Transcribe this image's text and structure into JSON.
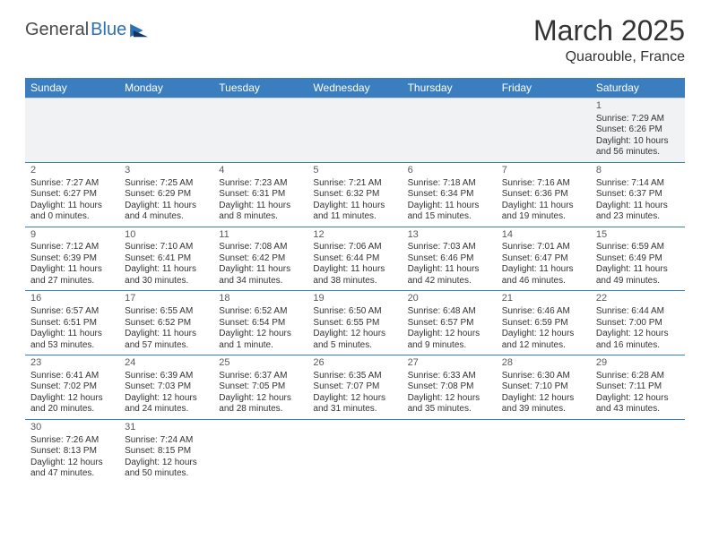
{
  "logo": {
    "text1": "General",
    "text2": "Blue"
  },
  "title": "March 2025",
  "location": "Quarouble, France",
  "colors": {
    "header_bg": "#3a7ebf",
    "header_fg": "#ffffff",
    "row_border": "#3a7ebf",
    "blank_bg": "#f0f2f4",
    "text": "#333333"
  },
  "day_headers": [
    "Sunday",
    "Monday",
    "Tuesday",
    "Wednesday",
    "Thursday",
    "Friday",
    "Saturday"
  ],
  "weeks": [
    [
      null,
      null,
      null,
      null,
      null,
      null,
      {
        "n": "1",
        "sr": "Sunrise: 7:29 AM",
        "ss": "Sunset: 6:26 PM",
        "d1": "Daylight: 10 hours",
        "d2": "and 56 minutes."
      }
    ],
    [
      {
        "n": "2",
        "sr": "Sunrise: 7:27 AM",
        "ss": "Sunset: 6:27 PM",
        "d1": "Daylight: 11 hours",
        "d2": "and 0 minutes."
      },
      {
        "n": "3",
        "sr": "Sunrise: 7:25 AM",
        "ss": "Sunset: 6:29 PM",
        "d1": "Daylight: 11 hours",
        "d2": "and 4 minutes."
      },
      {
        "n": "4",
        "sr": "Sunrise: 7:23 AM",
        "ss": "Sunset: 6:31 PM",
        "d1": "Daylight: 11 hours",
        "d2": "and 8 minutes."
      },
      {
        "n": "5",
        "sr": "Sunrise: 7:21 AM",
        "ss": "Sunset: 6:32 PM",
        "d1": "Daylight: 11 hours",
        "d2": "and 11 minutes."
      },
      {
        "n": "6",
        "sr": "Sunrise: 7:18 AM",
        "ss": "Sunset: 6:34 PM",
        "d1": "Daylight: 11 hours",
        "d2": "and 15 minutes."
      },
      {
        "n": "7",
        "sr": "Sunrise: 7:16 AM",
        "ss": "Sunset: 6:36 PM",
        "d1": "Daylight: 11 hours",
        "d2": "and 19 minutes."
      },
      {
        "n": "8",
        "sr": "Sunrise: 7:14 AM",
        "ss": "Sunset: 6:37 PM",
        "d1": "Daylight: 11 hours",
        "d2": "and 23 minutes."
      }
    ],
    [
      {
        "n": "9",
        "sr": "Sunrise: 7:12 AM",
        "ss": "Sunset: 6:39 PM",
        "d1": "Daylight: 11 hours",
        "d2": "and 27 minutes."
      },
      {
        "n": "10",
        "sr": "Sunrise: 7:10 AM",
        "ss": "Sunset: 6:41 PM",
        "d1": "Daylight: 11 hours",
        "d2": "and 30 minutes."
      },
      {
        "n": "11",
        "sr": "Sunrise: 7:08 AM",
        "ss": "Sunset: 6:42 PM",
        "d1": "Daylight: 11 hours",
        "d2": "and 34 minutes."
      },
      {
        "n": "12",
        "sr": "Sunrise: 7:06 AM",
        "ss": "Sunset: 6:44 PM",
        "d1": "Daylight: 11 hours",
        "d2": "and 38 minutes."
      },
      {
        "n": "13",
        "sr": "Sunrise: 7:03 AM",
        "ss": "Sunset: 6:46 PM",
        "d1": "Daylight: 11 hours",
        "d2": "and 42 minutes."
      },
      {
        "n": "14",
        "sr": "Sunrise: 7:01 AM",
        "ss": "Sunset: 6:47 PM",
        "d1": "Daylight: 11 hours",
        "d2": "and 46 minutes."
      },
      {
        "n": "15",
        "sr": "Sunrise: 6:59 AM",
        "ss": "Sunset: 6:49 PM",
        "d1": "Daylight: 11 hours",
        "d2": "and 49 minutes."
      }
    ],
    [
      {
        "n": "16",
        "sr": "Sunrise: 6:57 AM",
        "ss": "Sunset: 6:51 PM",
        "d1": "Daylight: 11 hours",
        "d2": "and 53 minutes."
      },
      {
        "n": "17",
        "sr": "Sunrise: 6:55 AM",
        "ss": "Sunset: 6:52 PM",
        "d1": "Daylight: 11 hours",
        "d2": "and 57 minutes."
      },
      {
        "n": "18",
        "sr": "Sunrise: 6:52 AM",
        "ss": "Sunset: 6:54 PM",
        "d1": "Daylight: 12 hours",
        "d2": "and 1 minute."
      },
      {
        "n": "19",
        "sr": "Sunrise: 6:50 AM",
        "ss": "Sunset: 6:55 PM",
        "d1": "Daylight: 12 hours",
        "d2": "and 5 minutes."
      },
      {
        "n": "20",
        "sr": "Sunrise: 6:48 AM",
        "ss": "Sunset: 6:57 PM",
        "d1": "Daylight: 12 hours",
        "d2": "and 9 minutes."
      },
      {
        "n": "21",
        "sr": "Sunrise: 6:46 AM",
        "ss": "Sunset: 6:59 PM",
        "d1": "Daylight: 12 hours",
        "d2": "and 12 minutes."
      },
      {
        "n": "22",
        "sr": "Sunrise: 6:44 AM",
        "ss": "Sunset: 7:00 PM",
        "d1": "Daylight: 12 hours",
        "d2": "and 16 minutes."
      }
    ],
    [
      {
        "n": "23",
        "sr": "Sunrise: 6:41 AM",
        "ss": "Sunset: 7:02 PM",
        "d1": "Daylight: 12 hours",
        "d2": "and 20 minutes."
      },
      {
        "n": "24",
        "sr": "Sunrise: 6:39 AM",
        "ss": "Sunset: 7:03 PM",
        "d1": "Daylight: 12 hours",
        "d2": "and 24 minutes."
      },
      {
        "n": "25",
        "sr": "Sunrise: 6:37 AM",
        "ss": "Sunset: 7:05 PM",
        "d1": "Daylight: 12 hours",
        "d2": "and 28 minutes."
      },
      {
        "n": "26",
        "sr": "Sunrise: 6:35 AM",
        "ss": "Sunset: 7:07 PM",
        "d1": "Daylight: 12 hours",
        "d2": "and 31 minutes."
      },
      {
        "n": "27",
        "sr": "Sunrise: 6:33 AM",
        "ss": "Sunset: 7:08 PM",
        "d1": "Daylight: 12 hours",
        "d2": "and 35 minutes."
      },
      {
        "n": "28",
        "sr": "Sunrise: 6:30 AM",
        "ss": "Sunset: 7:10 PM",
        "d1": "Daylight: 12 hours",
        "d2": "and 39 minutes."
      },
      {
        "n": "29",
        "sr": "Sunrise: 6:28 AM",
        "ss": "Sunset: 7:11 PM",
        "d1": "Daylight: 12 hours",
        "d2": "and 43 minutes."
      }
    ],
    [
      {
        "n": "30",
        "sr": "Sunrise: 7:26 AM",
        "ss": "Sunset: 8:13 PM",
        "d1": "Daylight: 12 hours",
        "d2": "and 47 minutes."
      },
      {
        "n": "31",
        "sr": "Sunrise: 7:24 AM",
        "ss": "Sunset: 8:15 PM",
        "d1": "Daylight: 12 hours",
        "d2": "and 50 minutes."
      },
      null,
      null,
      null,
      null,
      null
    ]
  ]
}
